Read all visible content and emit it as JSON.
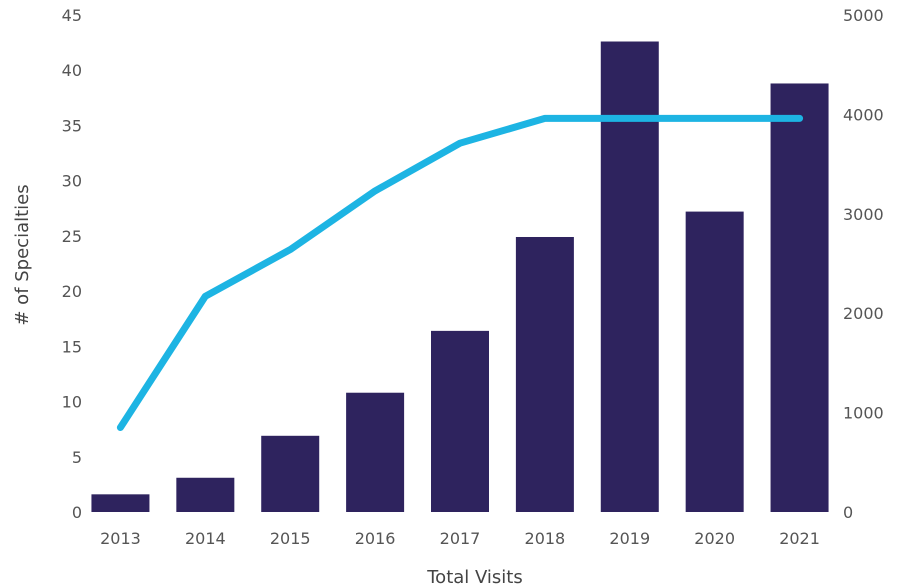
{
  "chart_data": {
    "type": "bar",
    "categories": [
      "2013",
      "2014",
      "2015",
      "2016",
      "2017",
      "2018",
      "2019",
      "2020",
      "2021"
    ],
    "series": [
      {
        "axis": "left",
        "type": "bar",
        "color": "#2e235e",
        "values": [
          1.6,
          3.1,
          6.9,
          10.8,
          16.4,
          24.9,
          42.6,
          27.2,
          38.8
        ]
      },
      {
        "axis": "right",
        "type": "line",
        "color": "#1db4e3",
        "values": [
          850,
          2170,
          2640,
          3230,
          3710,
          3960,
          3960,
          3960,
          3960
        ]
      }
    ],
    "xlabel": "Total Visits",
    "ylabel": "# of Specialties",
    "y_left": {
      "min": 0,
      "max": 45,
      "ticks": [
        0,
        5,
        10,
        15,
        20,
        25,
        30,
        35,
        40,
        45
      ]
    },
    "y_right": {
      "min": 0,
      "max": 5000,
      "ticks": [
        0,
        1000,
        2000,
        3000,
        4000,
        5000
      ]
    },
    "grid": false,
    "legend": "none"
  }
}
